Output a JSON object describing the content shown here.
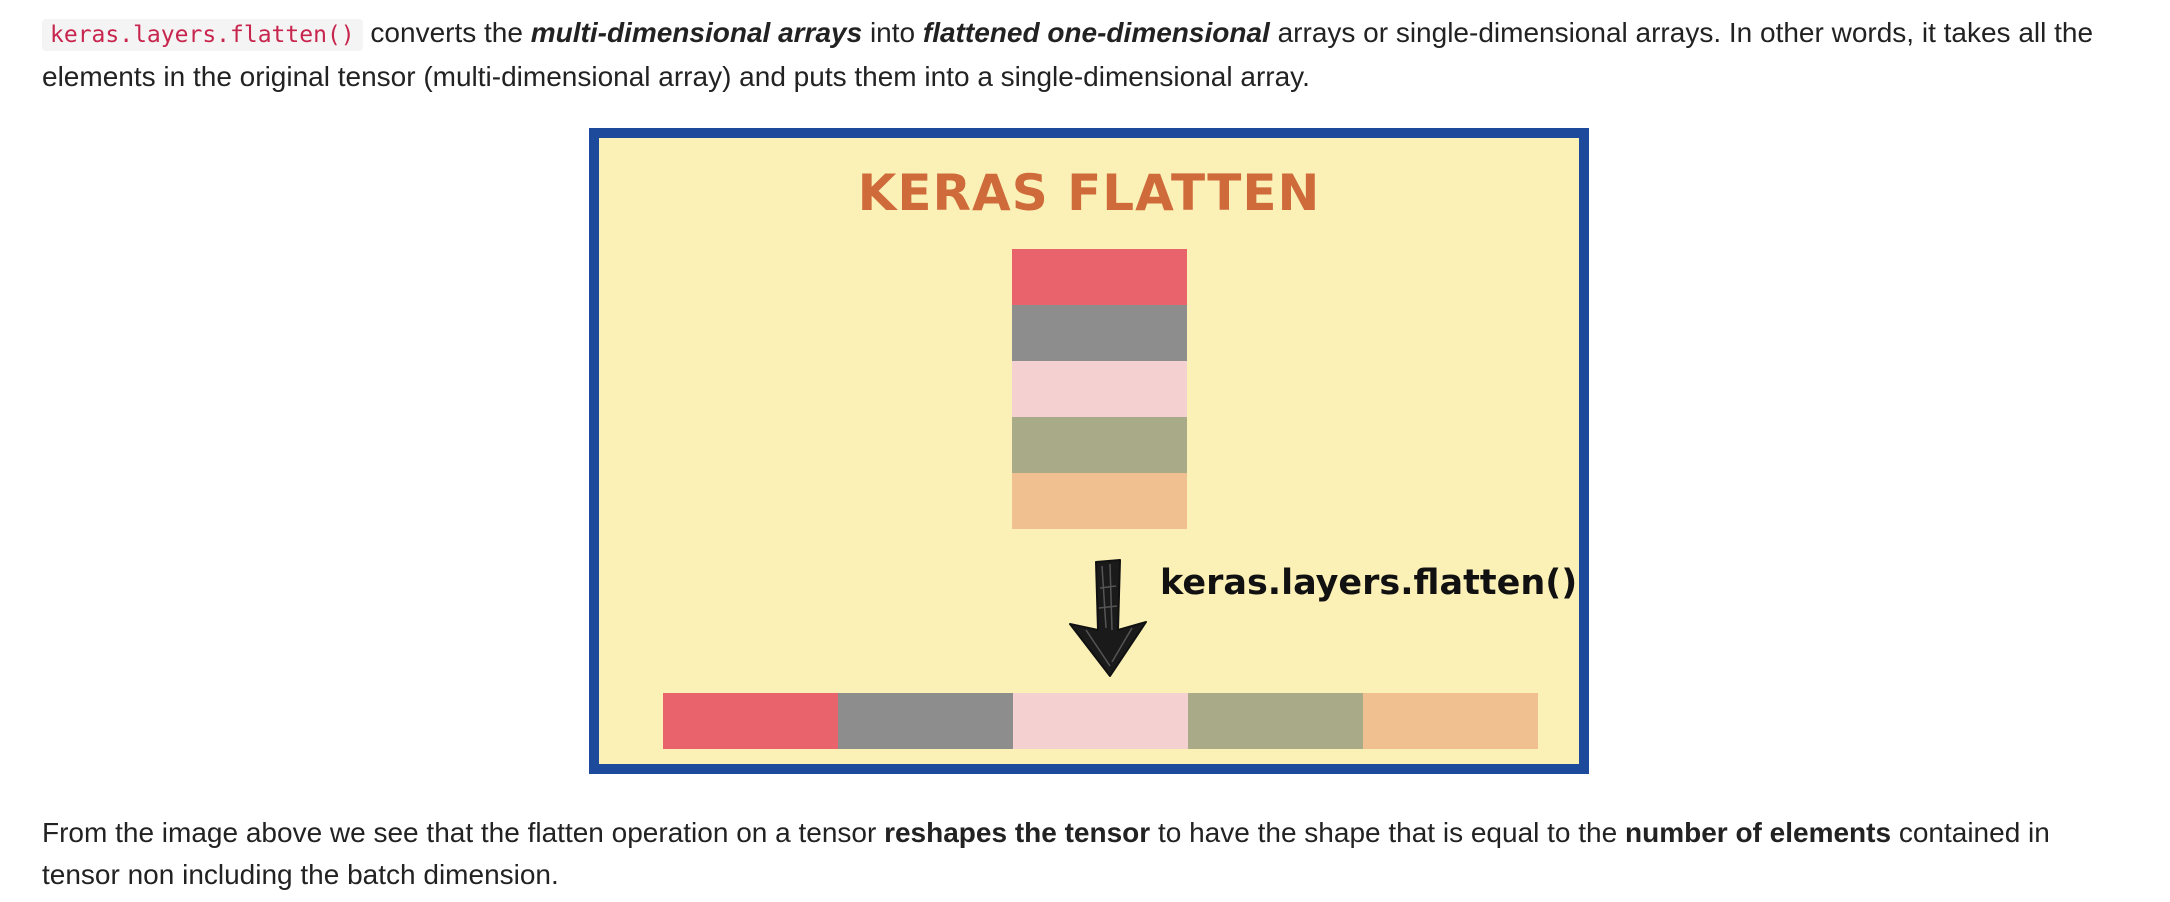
{
  "intro": {
    "code": "keras.layers.flatten()",
    "t1": " converts the ",
    "b1": "multi-dimensional arrays",
    "t2": " into ",
    "b2": "flattened one-dimensional",
    "t3": " arrays or single-dimensional arrays. In other words, it takes all the elements in the original tensor (multi-dimensional array) and puts them into a single-dimensional array."
  },
  "figure": {
    "title": "KERAS FLATTEN",
    "function_label": "keras.layers.flatten()",
    "block_colors": [
      "#e9636d",
      "#8d8d8d",
      "#f5d0d0",
      "#a9aa88",
      "#f0c090"
    ],
    "border_color": "#1e4a9c",
    "background_color": "#fbf1b7",
    "arrow_icon": "down-arrow-icon"
  },
  "outro": {
    "t1": "From the image above we see that the flatten operation on a tensor ",
    "b1": "reshapes the tensor",
    "t2": " to have the shape that is equal to the ",
    "b2": "number of elements",
    "t3": " contained in tensor non including the batch dimension."
  }
}
